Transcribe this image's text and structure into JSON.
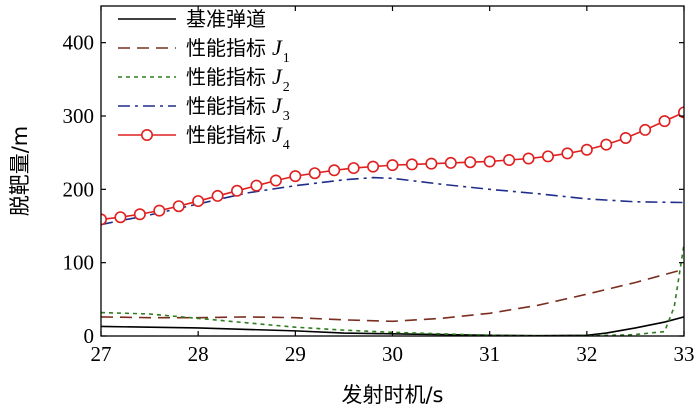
{
  "chart_data": {
    "type": "line",
    "xlabel": "发射时机/s",
    "ylabel": "脱靶量/m",
    "xlim": [
      27,
      33
    ],
    "ylim": [
      0,
      450
    ],
    "xticks": [
      27,
      28,
      29,
      30,
      31,
      32,
      33
    ],
    "yticks": [
      0,
      100,
      200,
      300,
      400
    ],
    "grid": false,
    "legend_position": "top-left",
    "series": [
      {
        "name": "基准弹道",
        "symbol": "",
        "subscript": "",
        "style": "solid",
        "color": "#000000",
        "x": [
          27.0,
          27.5,
          28.0,
          28.5,
          29.0,
          29.5,
          30.0,
          30.5,
          31.0,
          31.5,
          32.0,
          32.2,
          32.5,
          32.8,
          33.0
        ],
        "y": [
          13,
          12,
          11,
          9,
          7,
          4,
          3,
          2,
          1,
          0.5,
          1,
          4,
          11,
          19,
          26
        ]
      },
      {
        "name": "性能指标",
        "symbol": "J",
        "subscript": "1",
        "style": "dashed",
        "color": "#7a2e1f",
        "x": [
          27.0,
          27.5,
          28.0,
          28.5,
          29.0,
          29.5,
          30.0,
          30.5,
          31.0,
          31.5,
          32.0,
          32.5,
          33.0
        ],
        "y": [
          26,
          25,
          25,
          26,
          25,
          22,
          20,
          24,
          31,
          42,
          57,
          73,
          91
        ]
      },
      {
        "name": "性能指标",
        "symbol": "J",
        "subscript": "2",
        "style": "dotted",
        "color": "#2e7d1e",
        "x": [
          27.0,
          27.5,
          28.0,
          28.5,
          29.0,
          29.5,
          30.0,
          30.5,
          31.0,
          31.5,
          32.0,
          32.5,
          32.8,
          32.9,
          33.0
        ],
        "y": [
          32,
          30,
          24,
          18,
          12,
          8,
          5,
          3,
          1,
          0,
          0,
          2,
          6,
          40,
          125
        ]
      },
      {
        "name": "性能指标",
        "symbol": "J",
        "subscript": "3",
        "style": "dashdot",
        "color": "#1f2e8a",
        "x": [
          27.0,
          27.5,
          28.0,
          28.5,
          29.0,
          29.5,
          29.8,
          30.0,
          30.5,
          31.0,
          31.5,
          32.0,
          32.5,
          33.0
        ],
        "y": [
          152,
          165,
          180,
          195,
          205,
          213,
          216,
          215,
          207,
          200,
          194,
          187,
          183,
          182
        ]
      },
      {
        "name": "性能指标",
        "symbol": "J",
        "subscript": "4",
        "style": "solid-circle-markers",
        "color": "#e02020",
        "x": [
          27.0,
          27.2,
          27.4,
          27.6,
          27.8,
          28.0,
          28.2,
          28.4,
          28.6,
          28.8,
          29.0,
          29.2,
          29.4,
          29.6,
          29.8,
          30.0,
          30.2,
          30.4,
          30.6,
          30.8,
          31.0,
          31.2,
          31.4,
          31.6,
          31.8,
          32.0,
          32.2,
          32.4,
          32.6,
          32.8,
          33.0
        ],
        "y": [
          159,
          162,
          166,
          171,
          177,
          184,
          191,
          198,
          205,
          212,
          218,
          222,
          226,
          229,
          231,
          233,
          234,
          235,
          236,
          237,
          238,
          240,
          242,
          245,
          249,
          254,
          261,
          270,
          281,
          293,
          305
        ]
      }
    ]
  }
}
